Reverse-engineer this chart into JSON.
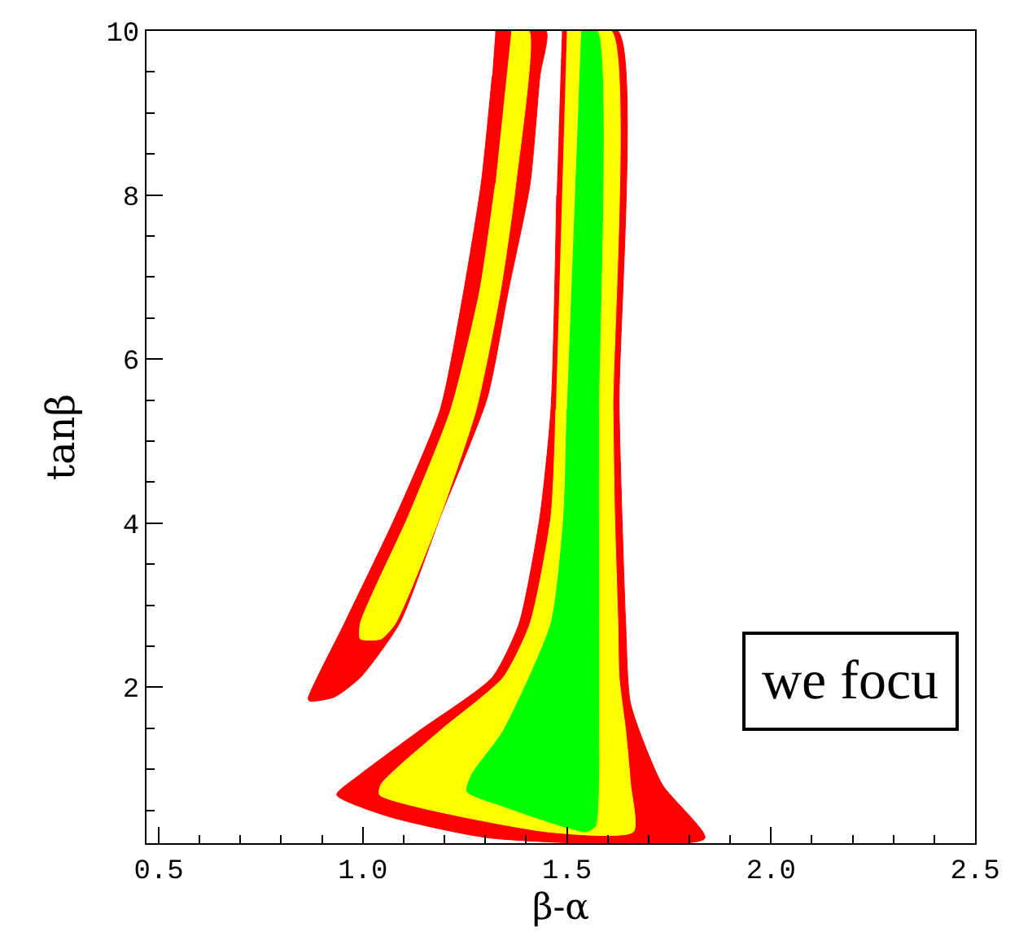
{
  "chart_data": {
    "type": "area",
    "xlabel": "β-α",
    "ylabel": "tanβ",
    "xlim": [
      0.47,
      2.5
    ],
    "ylim": [
      0.1,
      10
    ],
    "xticks": [
      0.5,
      {
        "value": 1,
        "label": "1.0"
      },
      1.5,
      {
        "value": 2,
        "label": "2.0"
      },
      2.5
    ],
    "yticks": [
      2,
      4,
      6,
      8,
      10
    ],
    "annotations": [
      "we focu"
    ],
    "series": [
      {
        "color": "#ff0000",
        "x": [
          1.325,
          1.449,
          1.434,
          1.41,
          1.356,
          1.305,
          1.19,
          1.09,
          0.994,
          0.93,
          0.87,
          0.866,
          0.955,
          1.08,
          1.19,
          1.247,
          1.29,
          1.317
        ],
        "values": [
          10,
          10,
          9.45,
          8.14,
          6.82,
          5.53,
          4.08,
          2.78,
          2.12,
          1.88,
          1.83,
          1.86,
          2.78,
          4.08,
          5.39,
          6.82,
          8.14,
          9.45
        ]
      },
      {
        "color": "#ffff00",
        "x": [
          1.364,
          1.407,
          1.375,
          1.337,
          1.278,
          1.189,
          1.08,
          1.045,
          0.994,
          0.994,
          1.111,
          1.216,
          1.286,
          1.325
        ],
        "values": [
          10,
          10,
          8.14,
          6.82,
          5.39,
          4.08,
          2.78,
          2.59,
          2.59,
          2.78,
          4.08,
          5.39,
          6.82,
          8.14
        ]
      },
      {
        "color": "#ff0000",
        "x": [
          1.488,
          1.625,
          1.628,
          1.644,
          1.656,
          1.733,
          1.838,
          1.317,
          1.06,
          0.936,
          0.994,
          1.138,
          1.317,
          1.383,
          1.434,
          1.461,
          1.475
        ],
        "values": [
          10,
          10,
          5.39,
          2.78,
          1.8,
          0.82,
          0.16,
          0.16,
          0.43,
          0.69,
          0.94,
          1.47,
          2.12,
          2.78,
          4.08,
          5.39,
          8
        ]
      },
      {
        "color": "#ffff00",
        "x": [
          1.5,
          1.609,
          1.613,
          1.617,
          1.625,
          1.628,
          1.644,
          1.656,
          1.663,
          1.449,
          1.041,
          1.045,
          1.189,
          1.344,
          1.41,
          1.461,
          1.473
        ],
        "values": [
          10,
          10,
          5.39,
          4.08,
          2.78,
          2.12,
          1.47,
          0.82,
          0.24,
          0.24,
          0.69,
          0.82,
          1.47,
          2.12,
          2.78,
          4.08,
          5.39
        ]
      },
      {
        "color": "#00ff00",
        "x": [
          1.535,
          1.574,
          1.578,
          1.578,
          1.578,
          1.578,
          1.578,
          1.57,
          1.547,
          1.344,
          1.255,
          1.267,
          1.344,
          1.461,
          1.492,
          1.5
        ],
        "values": [
          10,
          10,
          5.39,
          4.08,
          2.78,
          1.47,
          0.94,
          0.31,
          0.24,
          0.55,
          0.73,
          0.94,
          1.47,
          2.78,
          4.08,
          5.39
        ]
      }
    ]
  }
}
